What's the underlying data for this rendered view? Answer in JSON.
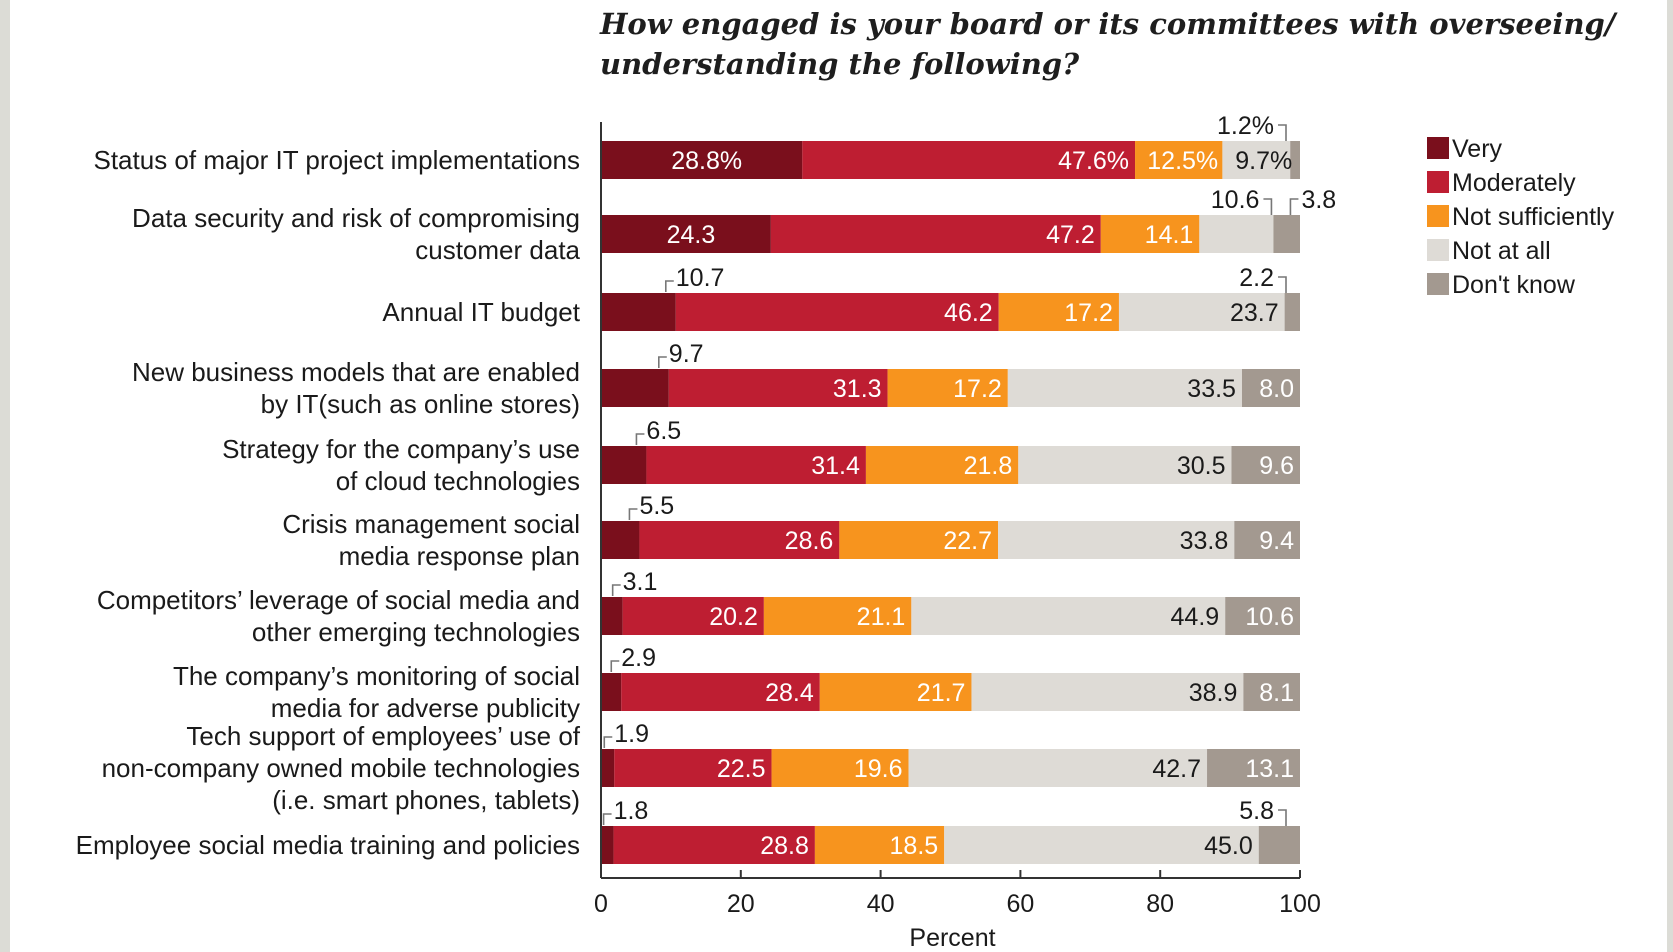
{
  "chart_data": {
    "type": "bar",
    "orientation": "horizontal",
    "stacked": true,
    "title": "How engaged is your board or its committees with overseeing/ understanding the following?",
    "xlabel": "Percent",
    "xlim": [
      0,
      100
    ],
    "xticks": [
      "0",
      "20",
      "40",
      "60",
      "80",
      "100"
    ],
    "legend_position": "right",
    "categories": [
      [
        "Status of major IT project implementations"
      ],
      [
        "Data security and risk of compromising",
        "customer data"
      ],
      [
        "Annual IT budget"
      ],
      [
        "New business models that are enabled",
        "by IT(such as online stores)"
      ],
      [
        "Strategy for the company’s use",
        "of cloud technologies"
      ],
      [
        "Crisis management social",
        "media response plan"
      ],
      [
        "Competitors’ leverage of social media and",
        "other emerging technologies"
      ],
      [
        "The company’s monitoring of social",
        "media for adverse publicity"
      ],
      [
        "Tech support of employees’ use of",
        "non-company owned mobile technologies",
        "(i.e. smart phones, tablets)"
      ],
      [
        "Employee social media training and policies"
      ]
    ],
    "series": [
      {
        "name": "Very",
        "color": "#7a0f1c",
        "values": [
          28.8,
          24.3,
          10.7,
          9.7,
          6.5,
          5.5,
          3.1,
          2.9,
          1.9,
          1.8
        ],
        "labels": [
          "28.8%",
          "24.3",
          "10.7",
          "9.7",
          "6.5",
          "5.5",
          "3.1",
          "2.9",
          "1.9",
          "1.8"
        ]
      },
      {
        "name": "Moderately",
        "color": "#be1e32",
        "values": [
          47.6,
          47.2,
          46.2,
          31.3,
          31.4,
          28.6,
          20.2,
          28.4,
          22.5,
          28.8
        ],
        "labels": [
          "47.6%",
          "47.2",
          "46.2",
          "31.3",
          "31.4",
          "28.6",
          "20.2",
          "28.4",
          "22.5",
          "28.8"
        ]
      },
      {
        "name": "Not sufficiently",
        "color": "#f7941e",
        "values": [
          12.5,
          14.1,
          17.2,
          17.2,
          21.8,
          22.7,
          21.1,
          21.7,
          19.6,
          18.5
        ],
        "labels": [
          "12.5%",
          "14.1",
          "17.2",
          "17.2",
          "21.8",
          "22.7",
          "21.1",
          "21.7",
          "19.6",
          "18.5"
        ]
      },
      {
        "name": "Not at all",
        "color": "#dedbd6",
        "values": [
          9.7,
          10.6,
          23.7,
          33.5,
          30.5,
          33.8,
          44.9,
          38.9,
          42.7,
          45.0
        ],
        "labels": [
          "9.7%",
          "10.6",
          "23.7",
          "33.5",
          "30.5",
          "33.8",
          "44.9",
          "38.9",
          "42.7",
          "45.0"
        ]
      },
      {
        "name": "Don't know",
        "color": "#a39990",
        "values": [
          1.2,
          3.8,
          2.2,
          8.0,
          9.6,
          9.4,
          10.6,
          8.1,
          13.1,
          5.8
        ],
        "labels": [
          "1.2%",
          "3.8",
          "2.2",
          "8.0",
          "9.6",
          "9.4",
          "10.6",
          "8.1",
          "13.1",
          "5.8"
        ]
      }
    ]
  }
}
